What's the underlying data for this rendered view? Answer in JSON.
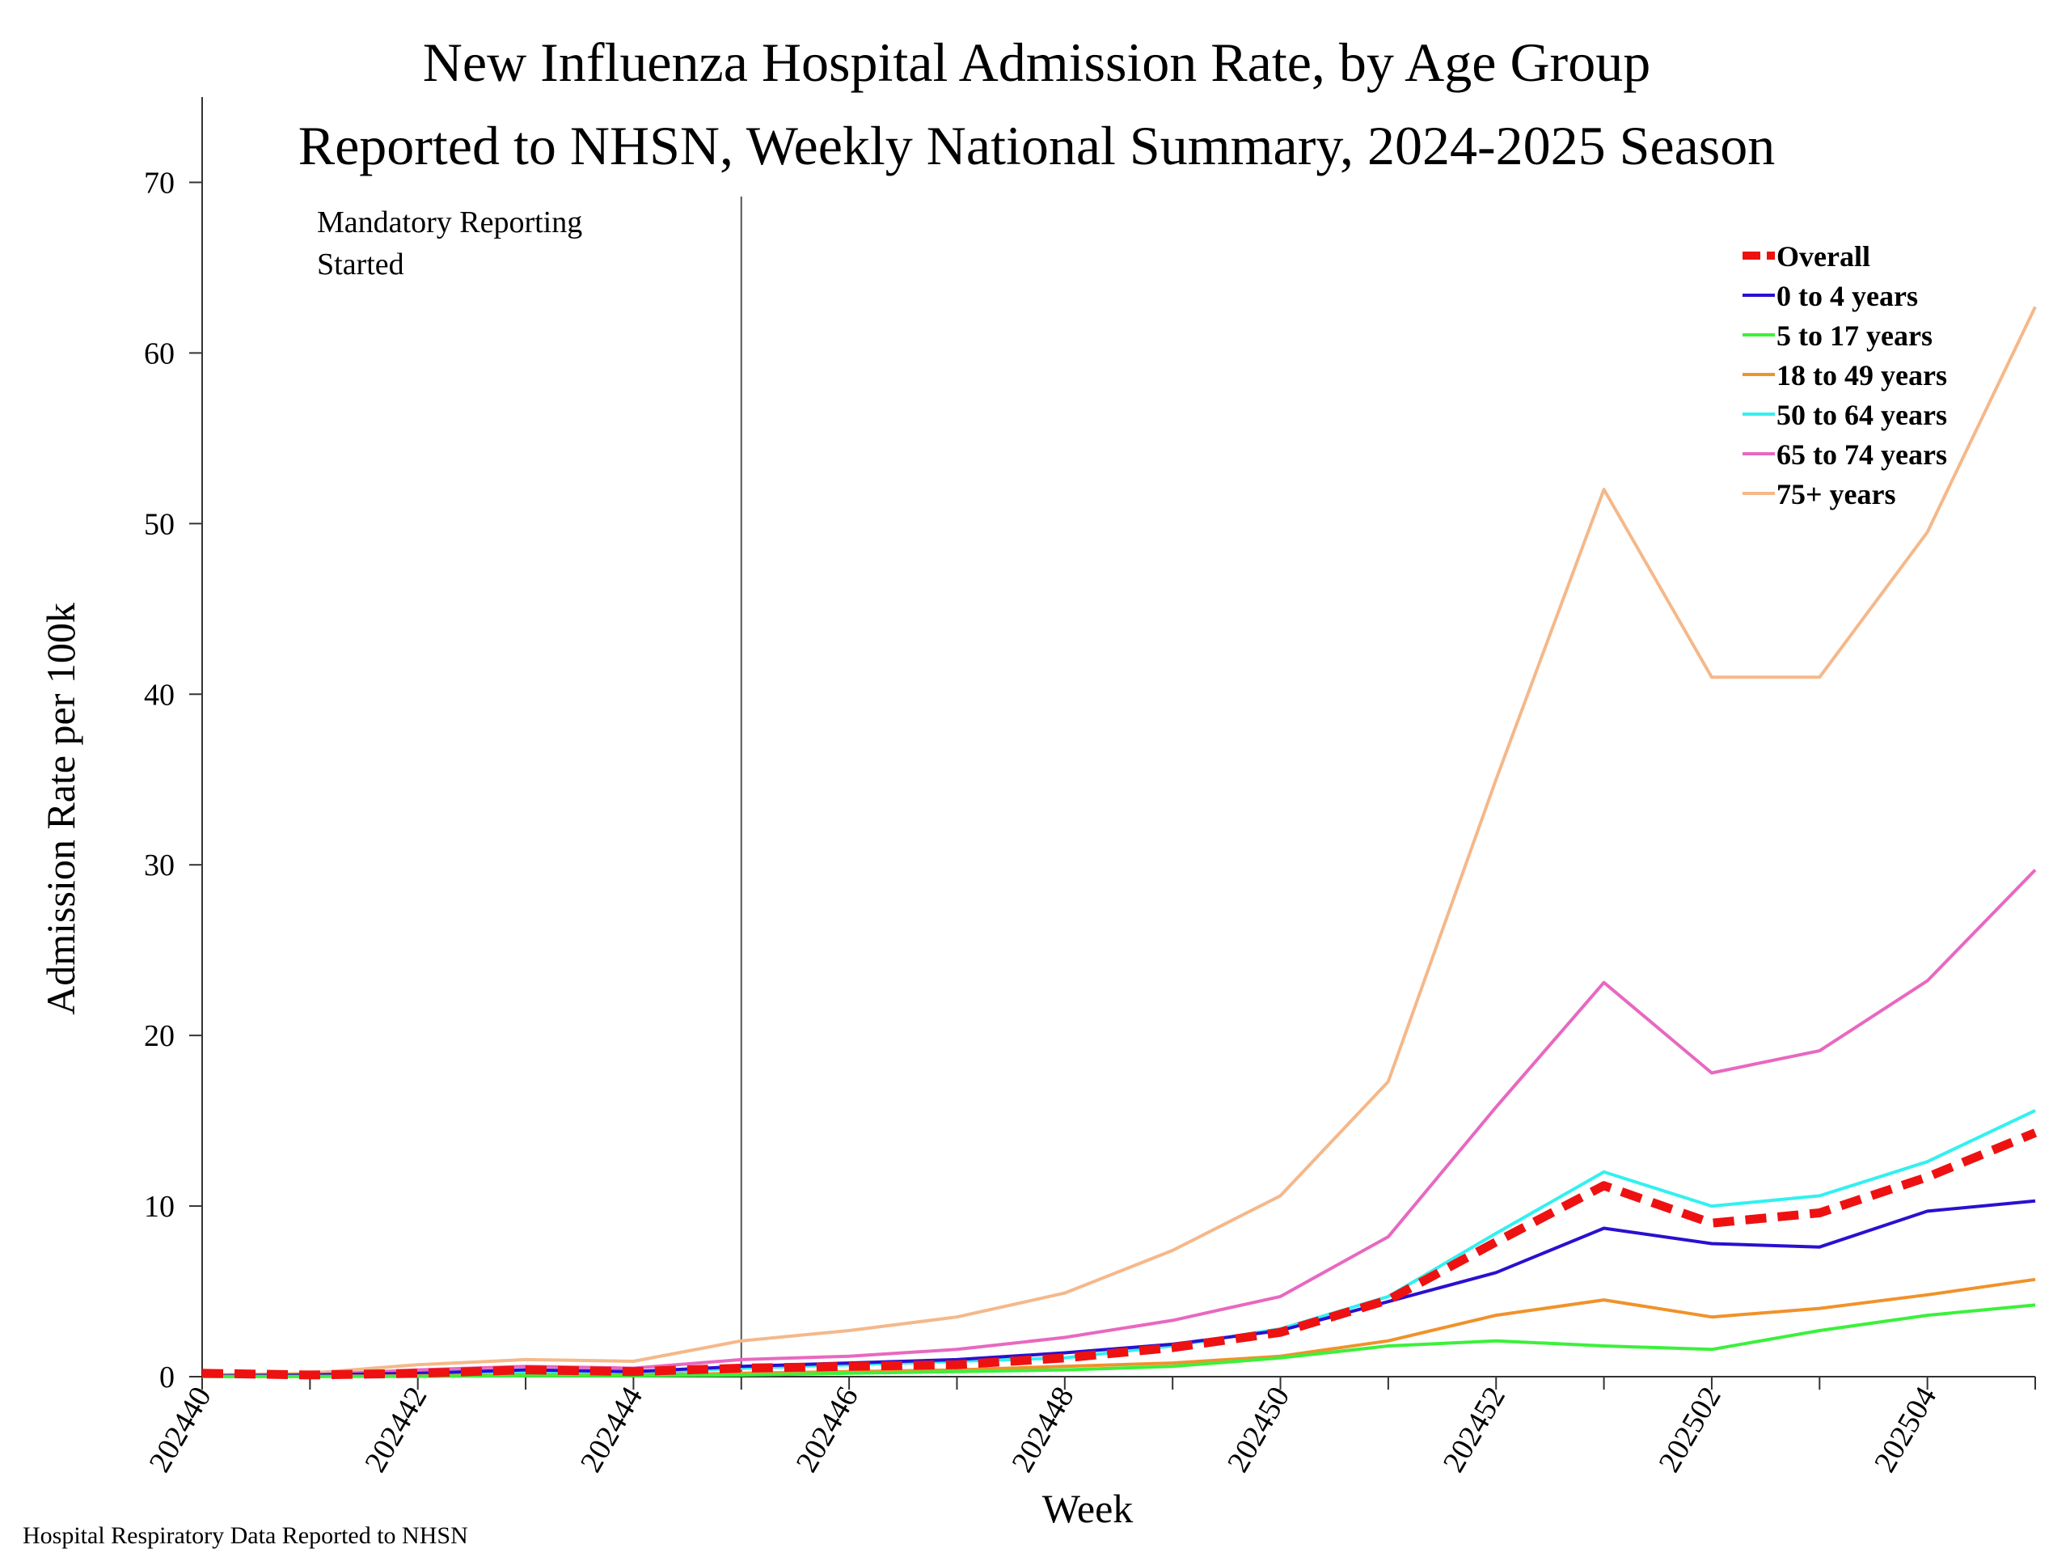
{
  "chart_data": {
    "type": "line",
    "title": "New Influenza Hospital Admission Rate, by Age Group",
    "subtitle": "Reported to NHSN, Weekly National Summary, 2024-2025 Season",
    "xlabel": "Week",
    "ylabel": "Admission Rate per 100k",
    "ylim": [
      0,
      75
    ],
    "y_ticks": [
      "0",
      "10",
      "20",
      "30",
      "40",
      "50",
      "60",
      "70"
    ],
    "x": [
      "202440",
      "202441",
      "202442",
      "202443",
      "202444",
      "202445",
      "202446",
      "202447",
      "202448",
      "202449",
      "202450",
      "202451",
      "202452",
      "202453",
      "202502",
      "202503",
      "202504",
      "202505"
    ],
    "x_tick_labels": [
      "202440",
      "202442",
      "202444",
      "202446",
      "202448",
      "202450",
      "202452",
      "202502",
      "202504"
    ],
    "annotation": {
      "text_line1": "Mandatory Reporting",
      "text_line2": "Started",
      "at_week": "202445"
    },
    "legend_position": "top-right",
    "series": [
      {
        "name": "75+ years",
        "color": "#F5B88A",
        "dashed": false,
        "values": [
          0.1,
          0.2,
          0.7,
          1.0,
          0.9,
          2.1,
          2.7,
          3.5,
          4.9,
          7.4,
          10.6,
          17.3,
          35.0,
          52.0,
          41.0,
          41.0,
          49.5,
          62.7
        ]
      },
      {
        "name": "65 to 74 years",
        "color": "#E868C0",
        "dashed": false,
        "values": [
          0.05,
          0.1,
          0.4,
          0.6,
          0.5,
          1.0,
          1.2,
          1.6,
          2.3,
          3.3,
          4.7,
          8.2,
          15.8,
          23.1,
          17.8,
          19.1,
          23.2,
          29.7
        ]
      },
      {
        "name": "50 to 64 years",
        "color": "#33F0F0",
        "dashed": false,
        "values": [
          0.02,
          0.05,
          0.1,
          0.2,
          0.2,
          0.5,
          0.7,
          0.9,
          1.1,
          1.8,
          2.8,
          4.7,
          8.4,
          12.0,
          10.0,
          10.6,
          12.6,
          15.6
        ]
      },
      {
        "name": "0 to 4 years",
        "color": "#2A10D0",
        "dashed": false,
        "values": [
          0.05,
          0.1,
          0.2,
          0.4,
          0.3,
          0.6,
          0.8,
          1.0,
          1.4,
          1.9,
          2.7,
          4.4,
          6.1,
          8.7,
          7.8,
          7.6,
          9.7,
          10.3
        ]
      },
      {
        "name": "18 to 49 years",
        "color": "#F0922A",
        "dashed": false,
        "values": [
          0.01,
          0.02,
          0.05,
          0.1,
          0.1,
          0.2,
          0.3,
          0.4,
          0.6,
          0.8,
          1.2,
          2.1,
          3.6,
          4.5,
          3.5,
          4.0,
          4.8,
          5.7
        ]
      },
      {
        "name": "5 to 17 years",
        "color": "#3CF03C",
        "dashed": false,
        "values": [
          0.01,
          0.01,
          0.02,
          0.05,
          0.05,
          0.1,
          0.2,
          0.3,
          0.4,
          0.6,
          1.1,
          1.8,
          2.1,
          1.8,
          1.6,
          2.7,
          3.6,
          4.2
        ]
      },
      {
        "name": "Overall",
        "color": "#EE1111",
        "dashed": true,
        "values": [
          0.2,
          0.1,
          0.2,
          0.4,
          0.3,
          0.5,
          0.6,
          0.7,
          1.1,
          1.7,
          2.6,
          4.5,
          7.9,
          11.2,
          9.0,
          9.6,
          11.7,
          14.3
        ]
      }
    ],
    "legend_order": [
      "Overall",
      "0 to 4 years",
      "5 to 17 years",
      "18 to 49 years",
      "50 to 64 years",
      "65 to 74 years",
      "75+ years"
    ]
  },
  "footer": {
    "source": "Hospital Respiratory Data Reported to NHSN"
  }
}
